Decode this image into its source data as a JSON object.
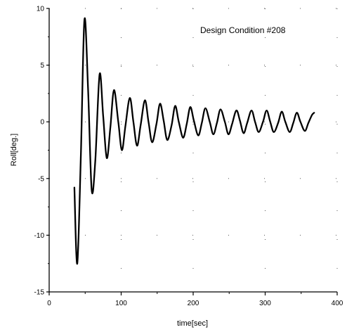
{
  "chart_data": {
    "type": "line",
    "title": "",
    "annotation": "Design Condition #208",
    "xlabel": "time[sec]",
    "ylabel": "Roll[deg.]",
    "xlim": [
      0,
      400
    ],
    "ylim": [
      -15,
      10
    ],
    "xticks": [
      0,
      100,
      200,
      300,
      400
    ],
    "yticks": [
      10,
      5,
      0,
      -5,
      -10,
      -15
    ],
    "grid": "dotted",
    "line_color": "#000000",
    "series": [
      {
        "x": [
          35,
          39,
          44,
          49,
          54,
          59,
          64,
          70,
          75,
          80,
          85,
          90,
          96,
          101,
          106,
          112,
          117,
          122,
          127,
          133,
          138,
          143,
          149,
          154,
          159,
          164,
          170,
          175,
          180,
          186,
          191,
          196,
          201,
          207,
          212,
          217,
          223,
          228,
          233,
          238,
          244,
          249,
          254,
          260,
          265,
          270,
          275,
          281,
          286,
          291,
          297,
          302,
          307,
          312,
          318,
          323,
          328,
          334,
          339,
          344,
          349,
          355,
          360,
          365,
          368
        ],
        "values": [
          -5.8,
          -12.5,
          -3.0,
          9.0,
          3.0,
          -6.0,
          -3.5,
          4.2,
          0.5,
          -3.2,
          -0.5,
          2.8,
          0.0,
          -2.5,
          -0.3,
          2.1,
          0.0,
          -2.1,
          -0.3,
          1.9,
          0.0,
          -1.8,
          -0.2,
          1.6,
          0.1,
          -1.6,
          -0.3,
          1.4,
          0.0,
          -1.4,
          -0.2,
          1.3,
          0.1,
          -1.2,
          -0.1,
          1.2,
          0.0,
          -1.1,
          -0.1,
          1.1,
          0.0,
          -1.1,
          -0.2,
          1.0,
          0.1,
          -1.0,
          -0.1,
          1.0,
          0.0,
          -0.9,
          0.0,
          1.0,
          0.0,
          -0.9,
          -0.1,
          0.9,
          0.0,
          -0.9,
          -0.1,
          0.8,
          0.0,
          -0.8,
          -0.1,
          0.6,
          0.8
        ]
      }
    ]
  }
}
